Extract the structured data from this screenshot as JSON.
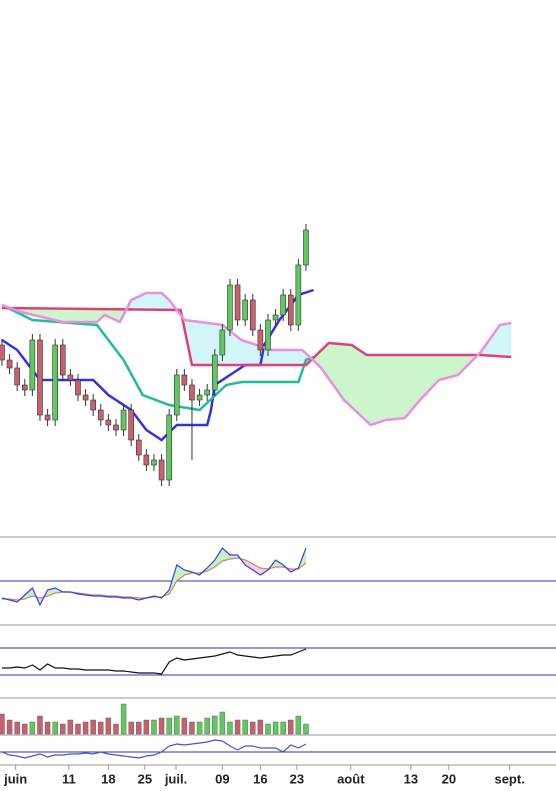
{
  "chart_data": [
    {
      "type": "candlestick",
      "x": [
        0,
        1,
        2,
        3,
        4,
        5,
        6,
        7,
        8,
        9,
        10,
        11,
        12,
        13,
        14,
        15,
        16,
        17,
        18,
        19,
        20,
        21,
        22,
        23,
        24,
        25,
        26,
        27,
        28,
        29,
        30,
        31,
        32,
        33,
        34,
        35,
        36,
        37,
        38,
        39,
        40
      ],
      "open": [
        185,
        170,
        162,
        145,
        140,
        190,
        115,
        110,
        185,
        155,
        150,
        135,
        130,
        120,
        110,
        105,
        100,
        120,
        90,
        75,
        65,
        70,
        50,
        115,
        155,
        145,
        130,
        135,
        140,
        175,
        200,
        245,
        210,
        230,
        200,
        180,
        210,
        215,
        235,
        205,
        265
      ],
      "high": [
        191,
        176,
        168,
        151,
        196,
        196,
        121,
        191,
        191,
        161,
        156,
        141,
        136,
        126,
        116,
        111,
        126,
        126,
        96,
        81,
        76,
        76,
        121,
        161,
        161,
        151,
        141,
        146,
        181,
        206,
        251,
        251,
        236,
        236,
        206,
        216,
        221,
        241,
        241,
        271,
        306
      ],
      "low": [
        164,
        156,
        139,
        134,
        134,
        109,
        104,
        104,
        149,
        144,
        129,
        124,
        114,
        104,
        99,
        94,
        94,
        84,
        69,
        59,
        59,
        44,
        44,
        109,
        139,
        70,
        124,
        129,
        134,
        169,
        194,
        204,
        204,
        194,
        174,
        174,
        204,
        209,
        199,
        199,
        259
      ],
      "close": [
        170,
        162,
        145,
        140,
        190,
        115,
        110,
        185,
        155,
        150,
        135,
        130,
        120,
        110,
        105,
        100,
        120,
        90,
        75,
        65,
        70,
        50,
        115,
        155,
        145,
        130,
        135,
        140,
        175,
        200,
        245,
        210,
        230,
        200,
        180,
        210,
        215,
        235,
        205,
        265,
        300
      ],
      "up_color": "#5fc95f",
      "down_color": "#c9606e",
      "ylim": [
        0,
        530
      ],
      "xlim": [
        -0.26,
        72.9
      ],
      "cloud_colors": [
        "#ccf5cc",
        "#d2f5f8"
      ],
      "lines": [
        {
          "color": "#3333dd",
          "x": [
            0,
            2,
            5,
            12,
            14,
            17,
            19,
            21,
            23,
            27,
            27.5,
            28,
            32,
            34,
            34.5,
            36.5,
            39,
            41
          ],
          "values": [
            190,
            180,
            150,
            150,
            135,
            120,
            100,
            90,
            105,
            105,
            120,
            145,
            165,
            165,
            185,
            210,
            235,
            240
          ]
        },
        {
          "color": "#22bb99",
          "x": [
            0,
            4,
            12.5,
            16,
            18.5,
            22,
            26,
            29.5,
            31.5,
            39,
            40,
            41
          ],
          "values": [
            225,
            210,
            205,
            170,
            135,
            125,
            120,
            145,
            148,
            148,
            170,
            173
          ]
        },
        {
          "color": "#e0407a",
          "x": [
            0,
            23.5,
            25,
            40,
            43,
            46,
            48,
            63,
            67
          ],
          "values": [
            222,
            220,
            165,
            165,
            187,
            185,
            175,
            175,
            173
          ]
        },
        {
          "color": "#e890e0",
          "x": [
            0,
            2.5,
            8,
            12.5,
            13.5,
            15.5,
            17,
            19,
            21,
            22,
            24,
            29,
            31.5,
            35.5,
            39.5,
            42,
            45,
            48.5,
            50.5,
            53,
            55,
            57.5,
            60,
            63,
            65.5,
            67
          ],
          "values": [
            225,
            218,
            208,
            208,
            215,
            208,
            230,
            237,
            237,
            230,
            210,
            205,
            190,
            180,
            180,
            162,
            130,
            105,
            110,
            112,
            130,
            150,
            155,
            178,
            205,
            207
          ]
        }
      ]
    },
    {
      "type": "line",
      "ylim": [
        -44,
        44
      ],
      "levels": [
        0
      ],
      "level_color": "#3333aa",
      "fill_colors": [
        "#c6efc6",
        "#f6cfd8"
      ],
      "series": [
        {
          "color": "#3344dd",
          "values": [
            -17,
            -19,
            -21,
            -14,
            -7,
            -24,
            -9,
            -7,
            -11,
            -11,
            -13,
            -14,
            -15,
            -15,
            -16,
            -16,
            -17,
            -17,
            -19,
            -17,
            -15,
            -17,
            -9,
            16,
            11,
            9,
            6,
            13,
            21,
            33,
            26,
            26,
            16,
            11,
            6,
            11,
            21,
            16,
            9,
            13,
            33
          ]
        },
        {
          "color": "#d08860",
          "values": [
            -18,
            -18,
            -19,
            -18,
            -15,
            -17,
            -15,
            -12,
            -11,
            -11,
            -12,
            -13,
            -14,
            -14,
            -15,
            -15,
            -16,
            -16,
            -17,
            -17,
            -16,
            -16,
            -13,
            0,
            6,
            8,
            8,
            10,
            14,
            20,
            22,
            23,
            21,
            17,
            13,
            12,
            14,
            14,
            12,
            12,
            18
          ]
        }
      ]
    },
    {
      "type": "line",
      "ylim": [
        -23,
        50
      ],
      "levels": [
        27,
        0
      ],
      "level_color": "#3333aa",
      "series": [
        {
          "color": "#111111",
          "values": [
            7,
            7,
            8,
            7,
            10,
            5,
            11,
            7,
            7,
            6,
            6,
            5,
            5,
            5,
            5,
            4,
            4,
            3,
            2,
            2,
            2,
            1,
            13,
            17,
            15,
            16,
            17,
            18,
            19,
            21,
            23,
            20,
            19,
            18,
            17,
            18,
            19,
            20,
            20,
            23,
            26
          ]
        }
      ]
    },
    {
      "type": "volume",
      "ylim": [
        0,
        36
      ],
      "values": [
        20,
        14,
        12,
        10,
        12,
        18,
        12,
        12,
        10,
        14,
        10,
        12,
        14,
        12,
        16,
        10,
        30,
        12,
        12,
        14,
        14,
        16,
        16,
        18,
        16,
        12,
        12,
        16,
        18,
        22,
        12,
        14,
        14,
        12,
        14,
        10,
        12,
        12,
        14,
        18,
        10
      ]
    },
    {
      "type": "line",
      "ylim": [
        -13,
        17
      ],
      "levels": [
        0
      ],
      "level_color": "#3333aa",
      "series": [
        {
          "color": "#4455cc",
          "values": [
            0,
            -3,
            -4,
            -6,
            -4,
            -2,
            -5,
            -3,
            -3,
            -2,
            -2,
            -1,
            -2,
            0,
            -2,
            -3,
            -4,
            -5,
            -6,
            -4,
            -3,
            0,
            6,
            8,
            7,
            8,
            9,
            10,
            12,
            11,
            6,
            2,
            6,
            6,
            4,
            4,
            4,
            0,
            7,
            4,
            8
          ]
        }
      ],
      "xticks": [
        {
          "value": 1.8,
          "label": "juin"
        },
        {
          "value": 8.8,
          "label": "11"
        },
        {
          "value": 14,
          "label": "18"
        },
        {
          "value": 18.8,
          "label": "25"
        },
        {
          "value": 22.9,
          "label": "juil."
        },
        {
          "value": 29,
          "label": "09"
        },
        {
          "value": 34,
          "label": "16"
        },
        {
          "value": 38.8,
          "label": "23"
        },
        {
          "value": 45.9,
          "label": "août"
        },
        {
          "value": 53.8,
          "label": "13"
        },
        {
          "value": 58.8,
          "label": "20"
        },
        {
          "value": 66.8,
          "label": "sept."
        }
      ]
    }
  ]
}
